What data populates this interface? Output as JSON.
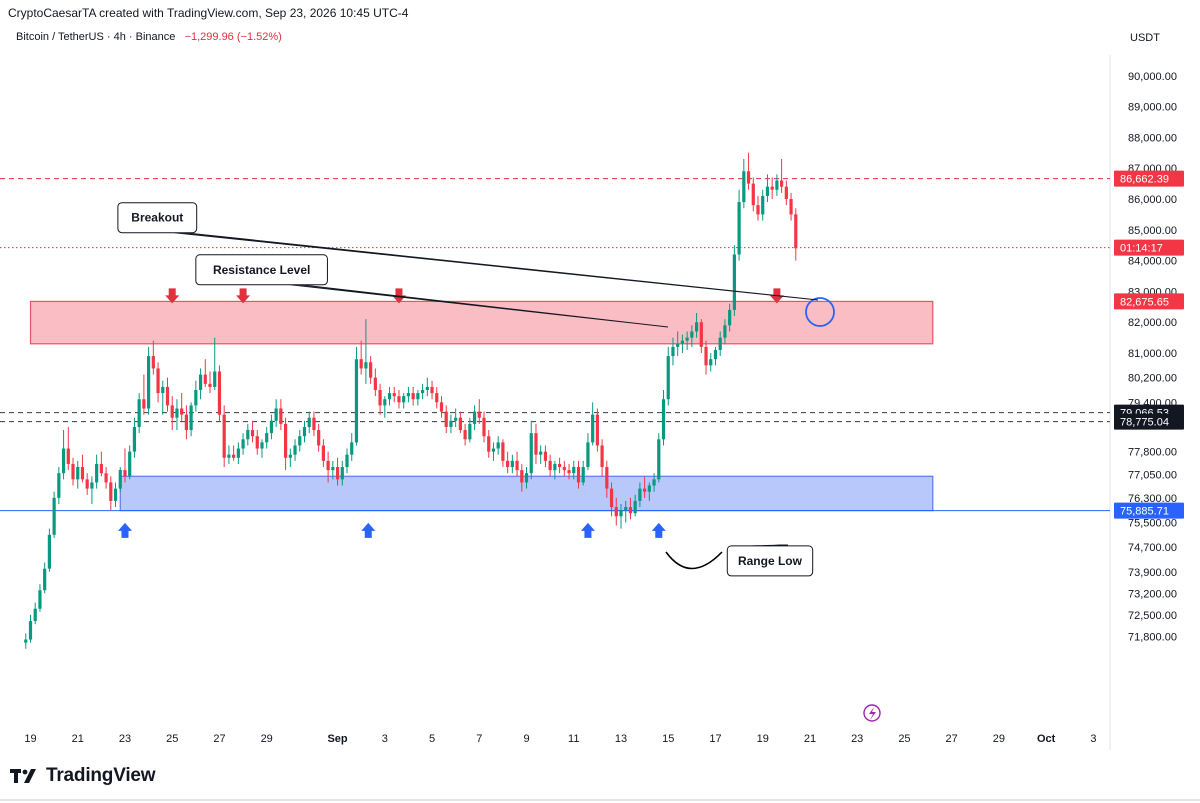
{
  "header": {
    "credit": "CryptoCaesarTA created with TradingView.com, Sep 23, 2026 10:45 UTC-4",
    "symbol": "Bitcoin / TetherUS · 4h · Binance",
    "change": "−1,299.96 (−1.52%)",
    "currency": "USDT"
  },
  "brand": {
    "name": "TradingView",
    "logo_icon": "tradingview-logo-icon"
  },
  "colors": {
    "up": "#089981",
    "down": "#f23645",
    "resistance_zone": "#f9bdc3",
    "support_zone": "#b8c8fb",
    "resistance_arrow": "#e0303e",
    "support_arrow": "#2962ff"
  },
  "chart_data": {
    "type": "candlestick",
    "x_ticks": [
      {
        "label": "19",
        "day": 19
      },
      {
        "label": "21",
        "day": 21
      },
      {
        "label": "23",
        "day": 23
      },
      {
        "label": "25",
        "day": 25
      },
      {
        "label": "27",
        "day": 27
      },
      {
        "label": "29",
        "day": 29
      },
      {
        "label": "Sep",
        "day": 32
      },
      {
        "label": "3",
        "day": 34
      },
      {
        "label": "5",
        "day": 36
      },
      {
        "label": "7",
        "day": 38
      },
      {
        "label": "9",
        "day": 40
      },
      {
        "label": "11",
        "day": 42
      },
      {
        "label": "13",
        "day": 44
      },
      {
        "label": "15",
        "day": 46
      },
      {
        "label": "17",
        "day": 48
      },
      {
        "label": "19",
        "day": 50
      },
      {
        "label": "21",
        "day": 52
      },
      {
        "label": "23",
        "day": 54
      },
      {
        "label": "25",
        "day": 56
      },
      {
        "label": "27",
        "day": 58
      },
      {
        "label": "29",
        "day": 60
      },
      {
        "label": "Oct",
        "day": 62
      },
      {
        "label": "3",
        "day": 64
      }
    ],
    "y_ticks": [
      "90,000.00",
      "89,000.00",
      "88,000.00",
      "87,000.00",
      "86,000.00",
      "85,000.00",
      "84,000.00",
      "83,000.00",
      "82,000.00",
      "81,000.00",
      "80,200.00",
      "79,400.00",
      "77,800.00",
      "77,050.00",
      "76,300.00",
      "75,500.00",
      "74,700.00",
      "73,900.00",
      "73,200.00",
      "72,500.00",
      "71,800.00"
    ],
    "y_ticks_values": [
      90000,
      89000,
      88000,
      87000,
      86000,
      85000,
      84000,
      83000,
      82000,
      81000,
      80200,
      79400,
      77800,
      77050,
      76300,
      75500,
      74700,
      73900,
      73200,
      72500,
      71800
    ],
    "price_labels": [
      {
        "text": "86,662.39",
        "value": 86662.39,
        "style": "red"
      },
      {
        "text": "01:14:17",
        "value": 84420,
        "style": "red"
      },
      {
        "text": "82,675.65",
        "value": 82675.65,
        "style": "red"
      },
      {
        "text": "79,066.53",
        "value": 79066.53,
        "style": "dark"
      },
      {
        "text": "78,775.04",
        "value": 78775.04,
        "style": "dark"
      },
      {
        "text": "75,885.71",
        "value": 75885.71,
        "style": "blue"
      }
    ],
    "zones": [
      {
        "name": "resistance",
        "top": 82675.65,
        "bottom": 81300,
        "from_day": 19,
        "to_day": 57.2
      },
      {
        "name": "support",
        "top": 77000,
        "bottom": 75885.71,
        "from_day": 22.8,
        "to_day": 57.2
      }
    ],
    "horizontal_lines": [
      {
        "value": 86662.39,
        "style": "dashed-red"
      },
      {
        "value": 84420,
        "style": "dotted-red"
      },
      {
        "value": 79066.53,
        "style": "dashed-dark"
      },
      {
        "value": 78775.04,
        "style": "dashed-dark"
      },
      {
        "value": 75885.71,
        "style": "solid-blue"
      }
    ],
    "annotations": [
      {
        "text": "Resistance Level",
        "box_day": 26,
        "box_price": 84190,
        "pointer_day": 34.6,
        "pointer_price": 82800
      },
      {
        "text": "Breakout",
        "box_day": 22.7,
        "box_price": 85880,
        "pointer_day": 34.8,
        "pointer_price": 82910
      },
      {
        "text": "Range Low",
        "box_day": 48.5,
        "box_price": 74740,
        "pointer_day": 41.4,
        "pointer_price": 75675
      }
    ],
    "resistance_arrows_days": [
      25.0,
      28.0,
      34.6,
      50.6
    ],
    "support_arrows_days": [
      23.0,
      33.3,
      42.6,
      45.6
    ],
    "candles": [
      [
        18.8,
        71600,
        71900,
        71400,
        71700
      ],
      [
        19.0,
        71700,
        72500,
        71600,
        72300
      ],
      [
        19.2,
        72300,
        72900,
        72200,
        72700
      ],
      [
        19.4,
        72700,
        73500,
        72600,
        73300
      ],
      [
        19.6,
        73300,
        74200,
        73200,
        74000
      ],
      [
        19.8,
        74000,
        75300,
        73900,
        75100
      ],
      [
        20.0,
        75100,
        76500,
        75000,
        76300
      ],
      [
        20.2,
        76300,
        77300,
        76100,
        77100
      ],
      [
        20.4,
        77100,
        78500,
        76900,
        77900
      ],
      [
        20.6,
        77900,
        78600,
        77200,
        77400
      ],
      [
        20.8,
        77400,
        77600,
        76700,
        76900
      ],
      [
        21.0,
        76900,
        77500,
        76600,
        77300
      ],
      [
        21.2,
        77300,
        77700,
        76800,
        76900
      ],
      [
        21.4,
        76900,
        77100,
        76400,
        76600
      ],
      [
        21.6,
        76600,
        77000,
        76100,
        76800
      ],
      [
        21.8,
        76800,
        77700,
        76600,
        77400
      ],
      [
        22.0,
        77400,
        77800,
        77000,
        77100
      ],
      [
        22.2,
        77100,
        77300,
        76600,
        76800
      ],
      [
        22.4,
        76800,
        77000,
        75900,
        76200
      ],
      [
        22.6,
        76200,
        76800,
        76000,
        76600
      ],
      [
        22.8,
        76600,
        77300,
        76500,
        77200
      ],
      [
        23.0,
        77200,
        77900,
        76800,
        77000
      ],
      [
        23.2,
        77000,
        78000,
        76900,
        77800
      ],
      [
        23.4,
        77800,
        78900,
        77600,
        78600
      ],
      [
        23.6,
        78600,
        79700,
        78400,
        79500
      ],
      [
        23.8,
        79500,
        80300,
        79000,
        79200
      ],
      [
        24.0,
        79200,
        81200,
        79000,
        80900
      ],
      [
        24.2,
        80900,
        81400,
        80300,
        80500
      ],
      [
        24.4,
        80500,
        80700,
        79400,
        79700
      ],
      [
        24.6,
        79700,
        80100,
        79000,
        79900
      ],
      [
        24.8,
        79900,
        80200,
        79100,
        79300
      ],
      [
        25.0,
        79300,
        79600,
        78500,
        78900
      ],
      [
        25.2,
        78900,
        79500,
        78500,
        79200
      ],
      [
        25.4,
        79200,
        79700,
        78800,
        79000
      ],
      [
        25.6,
        79000,
        79300,
        78200,
        78500
      ],
      [
        25.8,
        78500,
        79400,
        78300,
        79300
      ],
      [
        26.0,
        79300,
        80100,
        79100,
        79800
      ],
      [
        26.2,
        79800,
        80500,
        79500,
        80300
      ],
      [
        26.4,
        80300,
        80800,
        79900,
        80000
      ],
      [
        26.6,
        80000,
        80400,
        79700,
        79900
      ],
      [
        26.8,
        79900,
        81500,
        79800,
        80400
      ],
      [
        27.0,
        80400,
        80600,
        78800,
        79000
      ],
      [
        27.2,
        79000,
        79300,
        77300,
        77600
      ],
      [
        27.4,
        77600,
        78000,
        77400,
        77700
      ],
      [
        27.6,
        77700,
        78000,
        77500,
        77600
      ],
      [
        27.8,
        77600,
        78100,
        77400,
        77900
      ],
      [
        28.0,
        77900,
        78400,
        77700,
        78200
      ],
      [
        28.2,
        78200,
        78700,
        78000,
        78500
      ],
      [
        28.4,
        78500,
        78800,
        78100,
        78300
      ],
      [
        28.6,
        78300,
        78500,
        77700,
        77900
      ],
      [
        28.8,
        77900,
        78200,
        77600,
        78100
      ],
      [
        29.0,
        78100,
        78600,
        77900,
        78400
      ],
      [
        29.2,
        78400,
        79000,
        78200,
        78800
      ],
      [
        29.4,
        78800,
        79500,
        78600,
        79200
      ],
      [
        29.6,
        79200,
        79500,
        78500,
        78700
      ],
      [
        29.8,
        78700,
        78900,
        77200,
        77600
      ],
      [
        30.0,
        77600,
        77900,
        77300,
        77700
      ],
      [
        30.2,
        77700,
        78200,
        77500,
        78000
      ],
      [
        30.4,
        78000,
        78500,
        77800,
        78300
      ],
      [
        30.6,
        78300,
        78800,
        78100,
        78600
      ],
      [
        30.8,
        78600,
        79100,
        78400,
        78900
      ],
      [
        31.0,
        78900,
        79100,
        78300,
        78500
      ],
      [
        31.2,
        78500,
        78700,
        77800,
        78000
      ],
      [
        31.4,
        78000,
        78200,
        77300,
        77500
      ],
      [
        31.6,
        77500,
        77800,
        76800,
        77200
      ],
      [
        31.8,
        77200,
        77500,
        76900,
        77300
      ],
      [
        32.0,
        77300,
        77600,
        76700,
        76900
      ],
      [
        32.2,
        76900,
        77500,
        76700,
        77300
      ],
      [
        32.4,
        77300,
        77900,
        77100,
        77700
      ],
      [
        32.6,
        77700,
        78400,
        77500,
        78100
      ],
      [
        32.8,
        78100,
        81200,
        78000,
        80800
      ],
      [
        33.0,
        80800,
        81400,
        80300,
        80500
      ],
      [
        33.2,
        80500,
        82100,
        80000,
        80700
      ],
      [
        33.4,
        80700,
        80900,
        80000,
        80200
      ],
      [
        33.6,
        80200,
        80500,
        79600,
        79800
      ],
      [
        33.8,
        79800,
        80000,
        79000,
        79300
      ],
      [
        34.0,
        79300,
        79600,
        78900,
        79500
      ],
      [
        34.2,
        79500,
        79900,
        79300,
        79700
      ],
      [
        34.4,
        79700,
        79900,
        79400,
        79600
      ],
      [
        34.6,
        79600,
        79800,
        79200,
        79400
      ],
      [
        34.8,
        79400,
        79700,
        79200,
        79600
      ],
      [
        35.0,
        79600,
        79900,
        79400,
        79700
      ],
      [
        35.2,
        79700,
        79900,
        79300,
        79500
      ],
      [
        35.4,
        79500,
        79800,
        79300,
        79700
      ],
      [
        35.6,
        79700,
        80000,
        79500,
        79800
      ],
      [
        35.8,
        79800,
        80200,
        79600,
        79900
      ],
      [
        36.0,
        79900,
        80100,
        79500,
        79700
      ],
      [
        36.2,
        79700,
        79900,
        79200,
        79400
      ],
      [
        36.4,
        79400,
        79600,
        78900,
        79100
      ],
      [
        36.6,
        79100,
        79300,
        78400,
        78600
      ],
      [
        36.8,
        78600,
        79000,
        78400,
        78800
      ],
      [
        37.0,
        78800,
        79200,
        78600,
        78900
      ],
      [
        37.2,
        78900,
        79100,
        78400,
        78500
      ],
      [
        37.4,
        78500,
        78700,
        78000,
        78200
      ],
      [
        37.6,
        78200,
        78900,
        78100,
        78700
      ],
      [
        37.8,
        78700,
        79300,
        78500,
        79100
      ],
      [
        38.0,
        79100,
        79500,
        78700,
        78900
      ],
      [
        38.2,
        78900,
        79100,
        78100,
        78300
      ],
      [
        38.4,
        78300,
        78500,
        77600,
        77800
      ],
      [
        38.6,
        77800,
        78100,
        77500,
        77900
      ],
      [
        38.8,
        77900,
        78300,
        77700,
        78100
      ],
      [
        39.0,
        78100,
        78200,
        77300,
        77500
      ],
      [
        39.2,
        77500,
        77800,
        77100,
        77300
      ],
      [
        39.4,
        77300,
        77700,
        77100,
        77500
      ],
      [
        39.6,
        77500,
        77800,
        77000,
        77200
      ],
      [
        39.8,
        77200,
        77400,
        76500,
        76800
      ],
      [
        40.0,
        76800,
        77300,
        76600,
        77100
      ],
      [
        40.2,
        77100,
        78800,
        76900,
        78400
      ],
      [
        40.4,
        78400,
        78700,
        77400,
        77700
      ],
      [
        40.6,
        77700,
        78000,
        77400,
        77800
      ],
      [
        40.8,
        77800,
        78000,
        77300,
        77500
      ],
      [
        41.0,
        77500,
        77700,
        77000,
        77200
      ],
      [
        41.2,
        77200,
        77500,
        76900,
        77400
      ],
      [
        41.4,
        77400,
        77600,
        77100,
        77300
      ],
      [
        41.6,
        77300,
        77500,
        77000,
        77200
      ],
      [
        41.8,
        77200,
        77400,
        76900,
        77100
      ],
      [
        42.0,
        77100,
        77500,
        76900,
        77300
      ],
      [
        42.2,
        77300,
        77500,
        76600,
        76800
      ],
      [
        42.4,
        76800,
        77500,
        76700,
        77300
      ],
      [
        42.6,
        77300,
        78400,
        77200,
        78100
      ],
      [
        42.8,
        78100,
        79400,
        78000,
        79000
      ],
      [
        43.0,
        79000,
        79200,
        77800,
        78000
      ],
      [
        43.2,
        78000,
        78200,
        77000,
        77300
      ],
      [
        43.4,
        77300,
        77500,
        76300,
        76600
      ],
      [
        43.6,
        76600,
        76800,
        75700,
        76000
      ],
      [
        43.8,
        76000,
        76300,
        75400,
        75700
      ],
      [
        44.0,
        75700,
        76100,
        75300,
        75900
      ],
      [
        44.2,
        75900,
        76200,
        75500,
        76000
      ],
      [
        44.4,
        76000,
        76300,
        75600,
        75800
      ],
      [
        44.6,
        75800,
        76400,
        75700,
        76200
      ],
      [
        44.8,
        76200,
        76800,
        76000,
        76600
      ],
      [
        45.0,
        76600,
        77000,
        76300,
        76500
      ],
      [
        45.2,
        76500,
        76800,
        76200,
        76700
      ],
      [
        45.4,
        76700,
        77100,
        76500,
        76900
      ],
      [
        45.6,
        76900,
        78400,
        76800,
        78200
      ],
      [
        45.8,
        78200,
        79800,
        78000,
        79500
      ],
      [
        46.0,
        79500,
        81200,
        79300,
        80900
      ],
      [
        46.2,
        80900,
        81500,
        80600,
        81200
      ],
      [
        46.4,
        81200,
        81700,
        80900,
        81300
      ],
      [
        46.6,
        81300,
        81600,
        81000,
        81400
      ],
      [
        46.8,
        81400,
        81700,
        81100,
        81500
      ],
      [
        47.0,
        81500,
        81900,
        81200,
        81700
      ],
      [
        47.2,
        81700,
        82300,
        81500,
        82000
      ],
      [
        47.4,
        82000,
        82100,
        81000,
        81200
      ],
      [
        47.6,
        81200,
        81400,
        80300,
        80600
      ],
      [
        47.8,
        80600,
        81000,
        80400,
        80800
      ],
      [
        48.0,
        80800,
        81200,
        80600,
        81100
      ],
      [
        48.2,
        81100,
        81700,
        80900,
        81500
      ],
      [
        48.4,
        81500,
        82100,
        81300,
        81900
      ],
      [
        48.6,
        81900,
        82600,
        81700,
        82400
      ],
      [
        48.8,
        82400,
        84500,
        82200,
        84200
      ],
      [
        49.0,
        84200,
        86300,
        84000,
        85900
      ],
      [
        49.2,
        85900,
        87300,
        85700,
        86900
      ],
      [
        49.4,
        86900,
        87500,
        86300,
        86500
      ],
      [
        49.6,
        86500,
        86700,
        85600,
        85800
      ],
      [
        49.8,
        85800,
        86100,
        85300,
        85500
      ],
      [
        50.0,
        85500,
        86300,
        85300,
        86100
      ],
      [
        50.2,
        86100,
        86800,
        85900,
        86400
      ],
      [
        50.4,
        86400,
        86700,
        86000,
        86300
      ],
      [
        50.6,
        86300,
        86800,
        86100,
        86600
      ],
      [
        50.8,
        86600,
        87300,
        86200,
        86400
      ],
      [
        51.0,
        86400,
        86600,
        85800,
        86000
      ],
      [
        51.2,
        86000,
        86200,
        85300,
        85500
      ],
      [
        51.4,
        85500,
        85700,
        84000,
        84400
      ]
    ]
  }
}
